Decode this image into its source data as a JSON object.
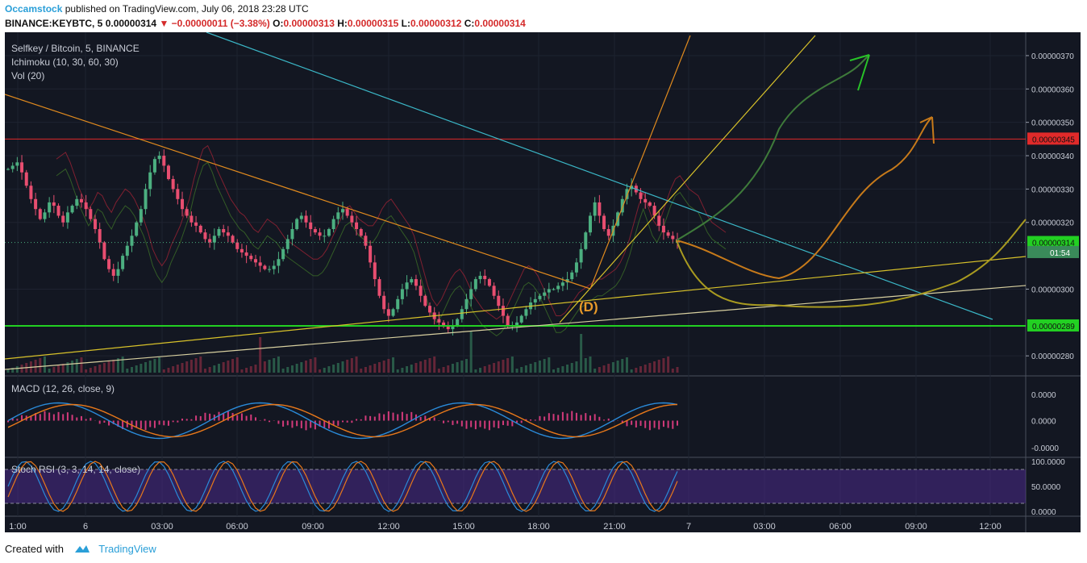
{
  "header": {
    "author": "Occamstock",
    "published": "published on TradingView.com, July 06, 2018 23:28 UTC",
    "symbol": "BINANCE:KEYBTC, 5",
    "last": "0.00000314",
    "change": "−0.00000011 (−3.38%)",
    "o_label": "O:",
    "o_value": "0.00000313",
    "h_label": "H:",
    "h_value": "0.00000315",
    "l_label": "L:",
    "l_value": "0.00000312",
    "c_label": "C:",
    "c_value": "0.00000314"
  },
  "overlay": {
    "pair": "Selfkey / Bitcoin, 5, BINANCE",
    "ichimoku": "Ichimoku (10, 30, 60, 30)",
    "vol": "Vol (20)",
    "macd": "MACD (12, 26, close, 9)",
    "stoch": "Stoch RSI (3, 3, 14, 14, close)"
  },
  "annotation": "(D)",
  "footer": {
    "created": "Created with",
    "brand": "TradingView"
  },
  "colors": {
    "bg": "#131722",
    "up": "#4caf80",
    "down": "#e84e70",
    "cyan": "#3bb8c8",
    "orange": "#e08a1e",
    "yellow": "#d8c22a",
    "green": "#22d022",
    "red": "#e02a2a"
  },
  "chart_data": [
    {
      "type": "candlestick",
      "title": "Selfkey / Bitcoin, 5, BINANCE",
      "x_ticks": [
        "1:00",
        "6",
        "03:00",
        "06:00",
        "09:00",
        "12:00",
        "15:00",
        "18:00",
        "21:00",
        "7",
        "03:00",
        "06:00",
        "09:00",
        "12:00"
      ],
      "y_ticks": [
        "0.00000370",
        "0.00000360",
        "0.00000350",
        "0.00000340",
        "0.00000330",
        "0.00000320",
        "0.00000300",
        "0.00000280"
      ],
      "ylim": [
        2.74e-06,
        3.77e-06
      ],
      "price_labels": [
        {
          "value": "0.00000345",
          "color": "#e02a2a"
        },
        {
          "value": "0.00000314",
          "color": "#22d022"
        },
        {
          "value": "0.00000289",
          "color": "#22d022"
        },
        {
          "value": "01:54",
          "color": "#3a8a5a"
        }
      ],
      "horizontal_levels": [
        3.45e-06,
        2.89e-06
      ],
      "close_series": [
        3.36e-06,
        3.37e-06,
        3.38e-06,
        3.35e-06,
        3.31e-06,
        3.27e-06,
        3.24e-06,
        3.21e-06,
        3.23e-06,
        3.26e-06,
        3.25e-06,
        3.22e-06,
        3.2e-06,
        3.23e-06,
        3.25e-06,
        3.27e-06,
        3.26e-06,
        3.24e-06,
        3.21e-06,
        3.18e-06,
        3.14e-06,
        3.09e-06,
        3.06e-06,
        3.04e-06,
        3.06e-06,
        3.1e-06,
        3.13e-06,
        3.16e-06,
        3.2e-06,
        3.24e-06,
        3.3e-06,
        3.35e-06,
        3.39e-06,
        3.4e-06,
        3.37e-06,
        3.33e-06,
        3.3e-06,
        3.27e-06,
        3.24e-06,
        3.22e-06,
        3.2e-06,
        3.19e-06,
        3.17e-06,
        3.15e-06,
        3.14e-06,
        3.16e-06,
        3.18e-06,
        3.17e-06,
        3.16e-06,
        3.14e-06,
        3.12e-06,
        3.11e-06,
        3.1e-06,
        3.09e-06,
        3.08e-06,
        3.07e-06,
        3.06e-06,
        3.06e-06,
        3.07e-06,
        3.09e-06,
        3.12e-06,
        3.15e-06,
        3.18e-06,
        3.21e-06,
        3.22e-06,
        3.2e-06,
        3.18e-06,
        3.17e-06,
        3.16e-06,
        3.16e-06,
        3.18e-06,
        3.21e-06,
        3.23e-06,
        3.24e-06,
        3.22e-06,
        3.2e-06,
        3.18e-06,
        3.16e-06,
        3.13e-06,
        3.08e-06,
        3.03e-06,
        2.98e-06,
        2.94e-06,
        2.92e-06,
        2.94e-06,
        2.97e-06,
        3e-06,
        3.02e-06,
        3.03e-06,
        3.01e-06,
        2.98e-06,
        2.95e-06,
        2.93e-06,
        2.91e-06,
        2.9e-06,
        2.89e-06,
        2.88e-06,
        2.89e-06,
        2.91e-06,
        2.94e-06,
        2.97e-06,
        3e-06,
        3.03e-06,
        3.04e-06,
        3.03e-06,
        3.01e-06,
        2.98e-06,
        2.95e-06,
        2.92e-06,
        2.89e-06,
        2.89e-06,
        2.9e-06,
        2.92e-06,
        2.94e-06,
        2.96e-06,
        2.97e-06,
        2.98e-06,
        2.99e-06,
        3e-06,
        3e-06,
        3.01e-06,
        3.02e-06,
        3.03e-06,
        3.05e-06,
        3.08e-06,
        3.12e-06,
        3.17e-06,
        3.22e-06,
        3.26e-06,
        3.22e-06,
        3.18e-06,
        3.16e-06,
        3.19e-06,
        3.23e-06,
        3.27e-06,
        3.3e-06,
        3.31e-06,
        3.29e-06,
        3.27e-06,
        3.26e-06,
        3.25e-06,
        3.22e-06,
        3.19e-06,
        3.17e-06,
        3.16e-06,
        3.15e-06,
        3.14e-06
      ],
      "macd_range": [
        "0.0000",
        "0.0000",
        "-0.0000"
      ],
      "stoch_rsi_range": [
        "100.0000",
        "50.0000",
        "0.0000"
      ]
    }
  ]
}
